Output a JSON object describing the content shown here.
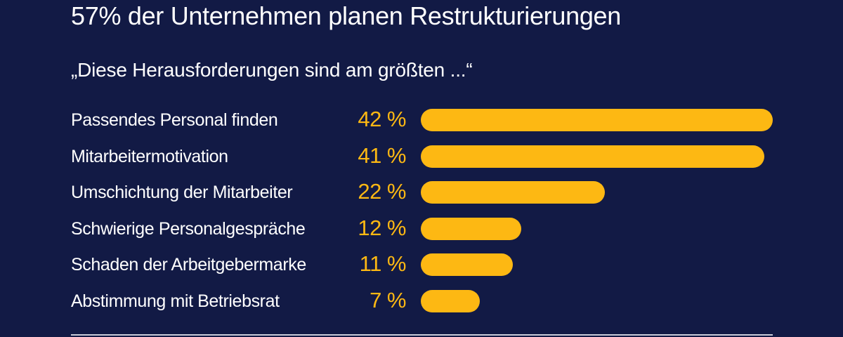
{
  "chart_data": {
    "type": "bar",
    "orientation": "horizontal",
    "title": "57% der Unternehmen planen Restrukturierungen",
    "subtitle": "„Diese Herausforderungen sind am größten ...“",
    "categories": [
      "Passendes Personal finden",
      "Mitarbeitermotivation",
      "Umschichtung der Mitarbeiter",
      "Schwierige Personalgespräche",
      "Schaden der Arbeitgebermarke",
      "Abstimmung mit Betriebsrat"
    ],
    "values": [
      42,
      41,
      22,
      12,
      11,
      7
    ],
    "value_labels": [
      "42 %",
      "41 %",
      "22 %",
      "12 %",
      "11 %",
      "7 %"
    ],
    "unit": "%",
    "xlim": [
      0,
      42
    ],
    "grid": false,
    "legend": "none",
    "colors": {
      "background": "#121a45",
      "bar": "#fdb813",
      "value_text": "#fdb813",
      "label_text": "#ffffff",
      "rule": "#c9ccd9"
    }
  }
}
